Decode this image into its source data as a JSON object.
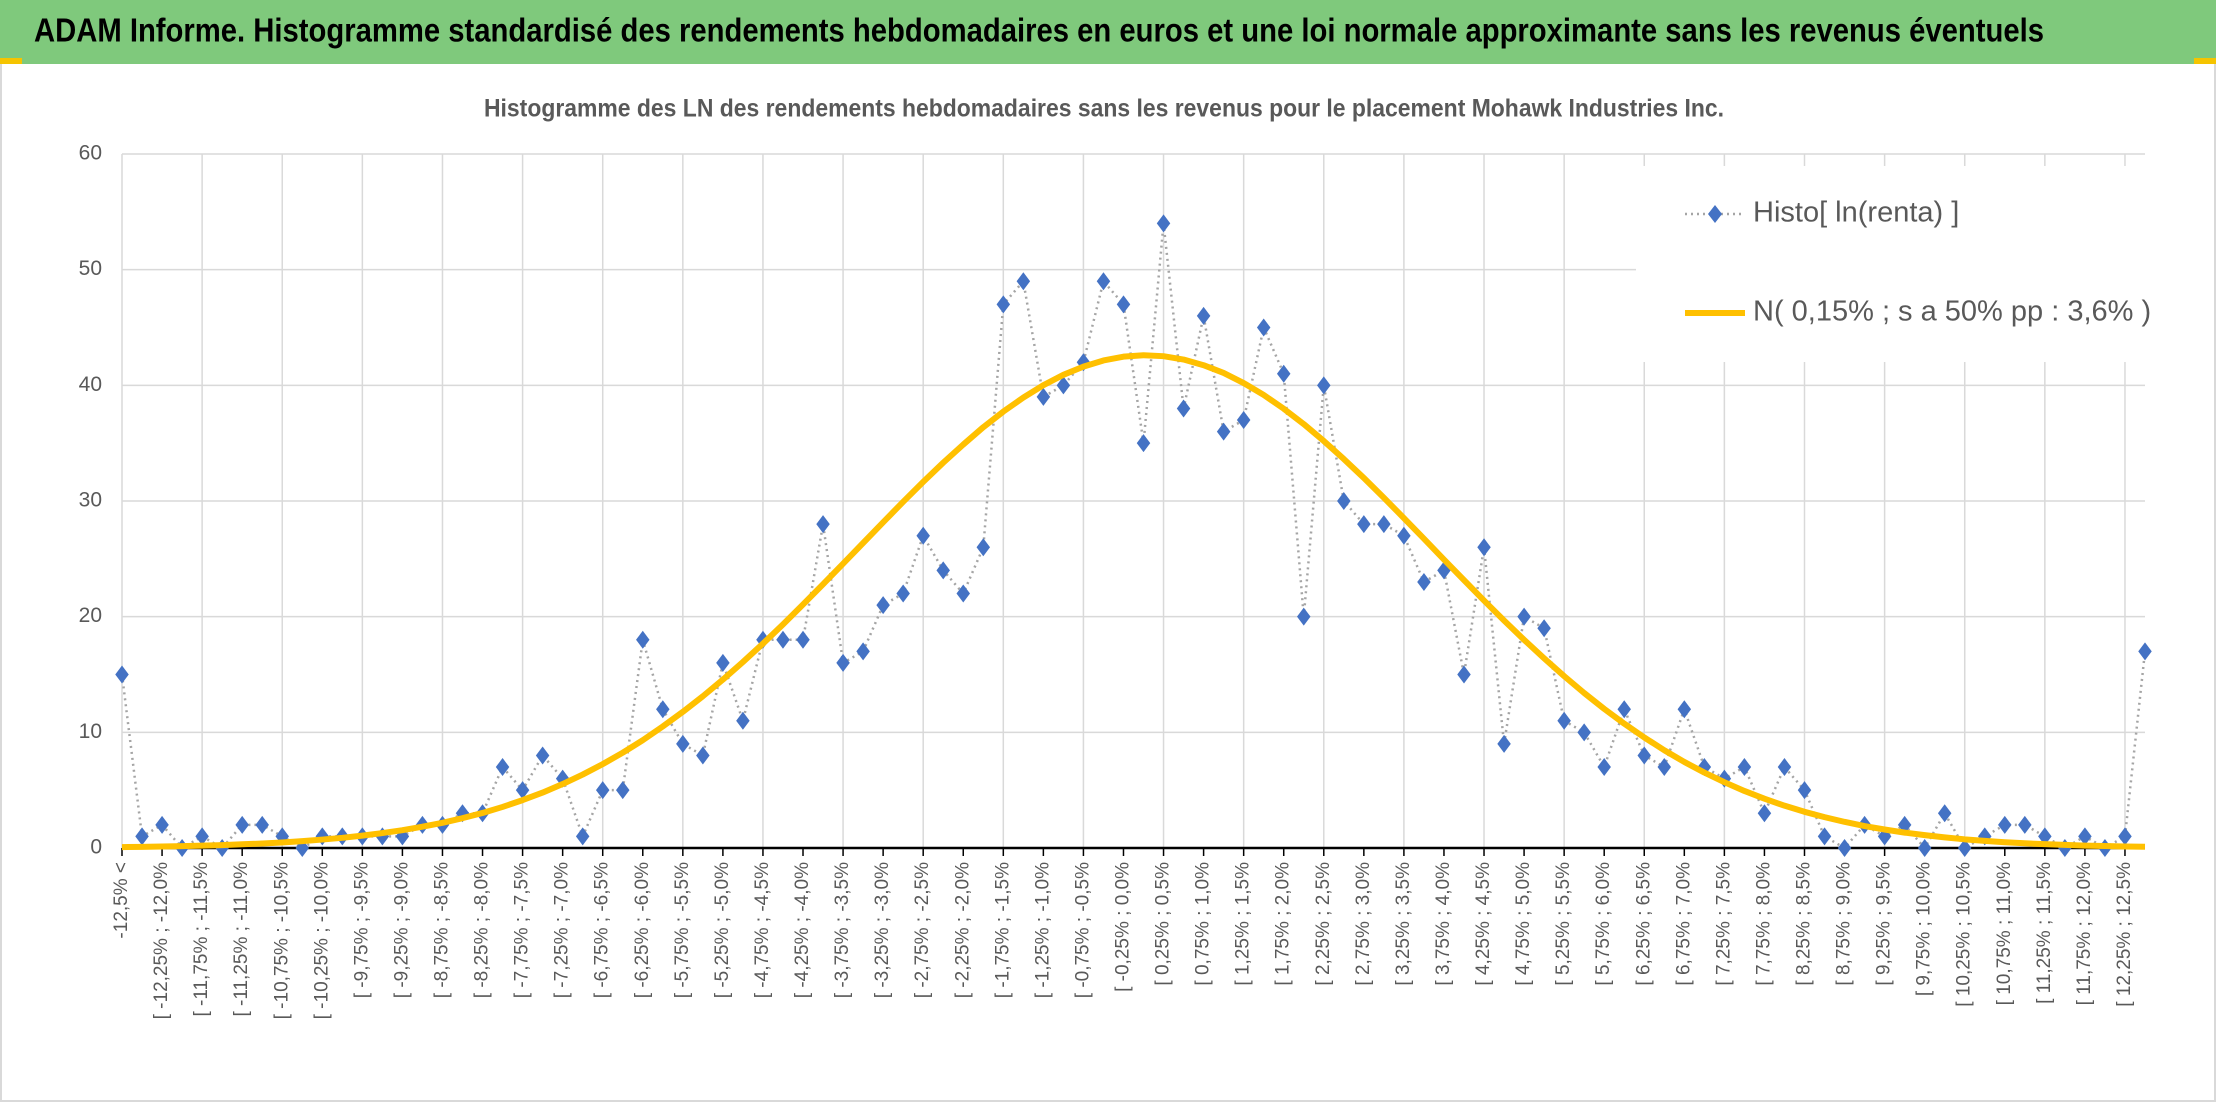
{
  "chart_data": {
    "type": "line",
    "page_title": "ADAM Informe. Histogramme standardisé des rendements hebdomadaires en euros et une loi normale approximante sans les revenus éventuels",
    "title": "Histogramme des LN des rendements hebdomadaires sans les revenus pour le placement Mohawk Industries Inc.",
    "categories": [
      "-12,5% <",
      null,
      "[ -12,25% ; -12,0%",
      null,
      "[ -11,75% ; -11,5%",
      null,
      "[ -11,25% ; -11,0%",
      null,
      "[ -10,75% ; -10,5%",
      null,
      "[ -10,25% ; -10,0%",
      null,
      "[ -9,75% ; -9,5%",
      null,
      "[ -9,25% ; -9,0%",
      null,
      "[ -8,75% ; -8,5%",
      null,
      "[ -8,25% ; -8,0%",
      null,
      "[ -7,75% ; -7,5%",
      null,
      "[ -7,25% ; -7,0%",
      null,
      "[ -6,75% ; -6,5%",
      null,
      "[ -6,25% ; -6,0%",
      null,
      "[ -5,75% ; -5,5%",
      null,
      "[ -5,25% ; -5,0%",
      null,
      "[ -4,75% ; -4,5%",
      null,
      "[ -4,25% ; -4,0%",
      null,
      "[ -3,75% ; -3,5%",
      null,
      "[ -3,25% ; -3,0%",
      null,
      "[ -2,75% ; -2,5%",
      null,
      "[ -2,25% ; -2,0%",
      null,
      "[ -1,75% ; -1,5%",
      null,
      "[ -1,25% ; -1,0%",
      null,
      "[ -0,75% ; -0,5%",
      null,
      "[ -0,25% ; 0,0%",
      null,
      "[ 0,25% ; 0,5%",
      null,
      "[ 0,75% ; 1,0%",
      null,
      "[ 1,25% ; 1,5%",
      null,
      "[ 1,75% ; 2,0%",
      null,
      "[ 2,25% ; 2,5%",
      null,
      "[ 2,75% ; 3,0%",
      null,
      "[ 3,25% ; 3,5%",
      null,
      "[ 3,75% ; 4,0%",
      null,
      "[ 4,25% ; 4,5%",
      null,
      "[ 4,75% ; 5,0%",
      null,
      "[ 5,25% ; 5,5%",
      null,
      "[ 5,75% ; 6,0%",
      null,
      "[ 6,25% ; 6,5%",
      null,
      "[ 6,75% ; 7,0%",
      null,
      "[ 7,25% ; 7,5%",
      null,
      "[ 7,75% ; 8,0%",
      null,
      "[ 8,25% ; 8,5%",
      null,
      "[ 8,75% ; 9,0%",
      null,
      "[ 9,25% ; 9,5%",
      null,
      "[ 9,75% ; 10,0%",
      null,
      "[ 10,25% ; 10,5%",
      null,
      "[ 10,75% ; 11,0%",
      null,
      "[ 11,25% ; 11,5%",
      null,
      "[ 11,75% ; 12,0%",
      null,
      "[ 12,25% ; 12,5%",
      null
    ],
    "series": [
      {
        "name": "Histo[ ln(renta) ]",
        "color": "#4472c4",
        "line_color": "#a5a5a5",
        "style": "dotted-markers",
        "values": [
          15,
          1,
          2,
          0,
          1,
          0,
          2,
          2,
          1,
          0,
          1,
          1,
          1,
          1,
          1,
          2,
          2,
          3,
          3,
          7,
          5,
          8,
          6,
          1,
          5,
          5,
          18,
          12,
          9,
          8,
          16,
          11,
          18,
          18,
          18,
          28,
          16,
          17,
          21,
          22,
          27,
          24,
          22,
          26,
          47,
          49,
          39,
          40,
          42,
          49,
          47,
          35,
          54,
          38,
          46,
          36,
          37,
          45,
          41,
          20,
          40,
          30,
          28,
          28,
          27,
          23,
          24,
          15,
          26,
          9,
          20,
          19,
          11,
          10,
          7,
          12,
          8,
          7,
          12,
          7,
          6,
          7,
          3,
          7,
          5,
          1,
          0,
          2,
          1,
          2,
          0,
          3,
          0,
          1,
          2,
          2,
          1,
          0,
          1,
          0,
          1,
          17
        ]
      },
      {
        "name": "N( 0,15% ; s a 50% pp : 3,6% )",
        "color": "#ffc000",
        "style": "line",
        "values": [
          0.08,
          0.1,
          0.13,
          0.16,
          0.2,
          0.25,
          0.32,
          0.39,
          0.48,
          0.59,
          0.73,
          0.88,
          1.07,
          1.29,
          1.54,
          1.84,
          2.18,
          2.58,
          3.03,
          3.55,
          4.14,
          4.79,
          5.53,
          6.35,
          7.25,
          8.24,
          9.32,
          10.51,
          11.77,
          13.12,
          14.56,
          16.08,
          17.67,
          19.33,
          21.05,
          22.8,
          24.58,
          26.37,
          28.16,
          29.93,
          31.65,
          33.31,
          34.88,
          36.38,
          37.73,
          38.94,
          40.01,
          40.91,
          41.62,
          42.15,
          42.48,
          42.6,
          42.52,
          42.23,
          41.74,
          41.07,
          40.2,
          39.17,
          37.98,
          36.65,
          35.19,
          33.63,
          31.99,
          30.28,
          28.52,
          26.74,
          24.94,
          23.16,
          21.39,
          19.67,
          18.0,
          16.4,
          14.86,
          13.4,
          12.03,
          10.75,
          9.56,
          8.45,
          7.44,
          6.52,
          5.69,
          4.93,
          4.26,
          3.66,
          3.13,
          2.67,
          2.26,
          1.9,
          1.6,
          1.33,
          1.11,
          0.92,
          0.75,
          0.62,
          0.5,
          0.41,
          0.33,
          0.27,
          0.21,
          0.17,
          0.13,
          0.11
        ]
      }
    ],
    "ylim": [
      0,
      60
    ],
    "yticks": [
      0,
      10,
      20,
      30,
      40,
      50,
      60
    ],
    "grid": true,
    "legend": "top-right"
  }
}
